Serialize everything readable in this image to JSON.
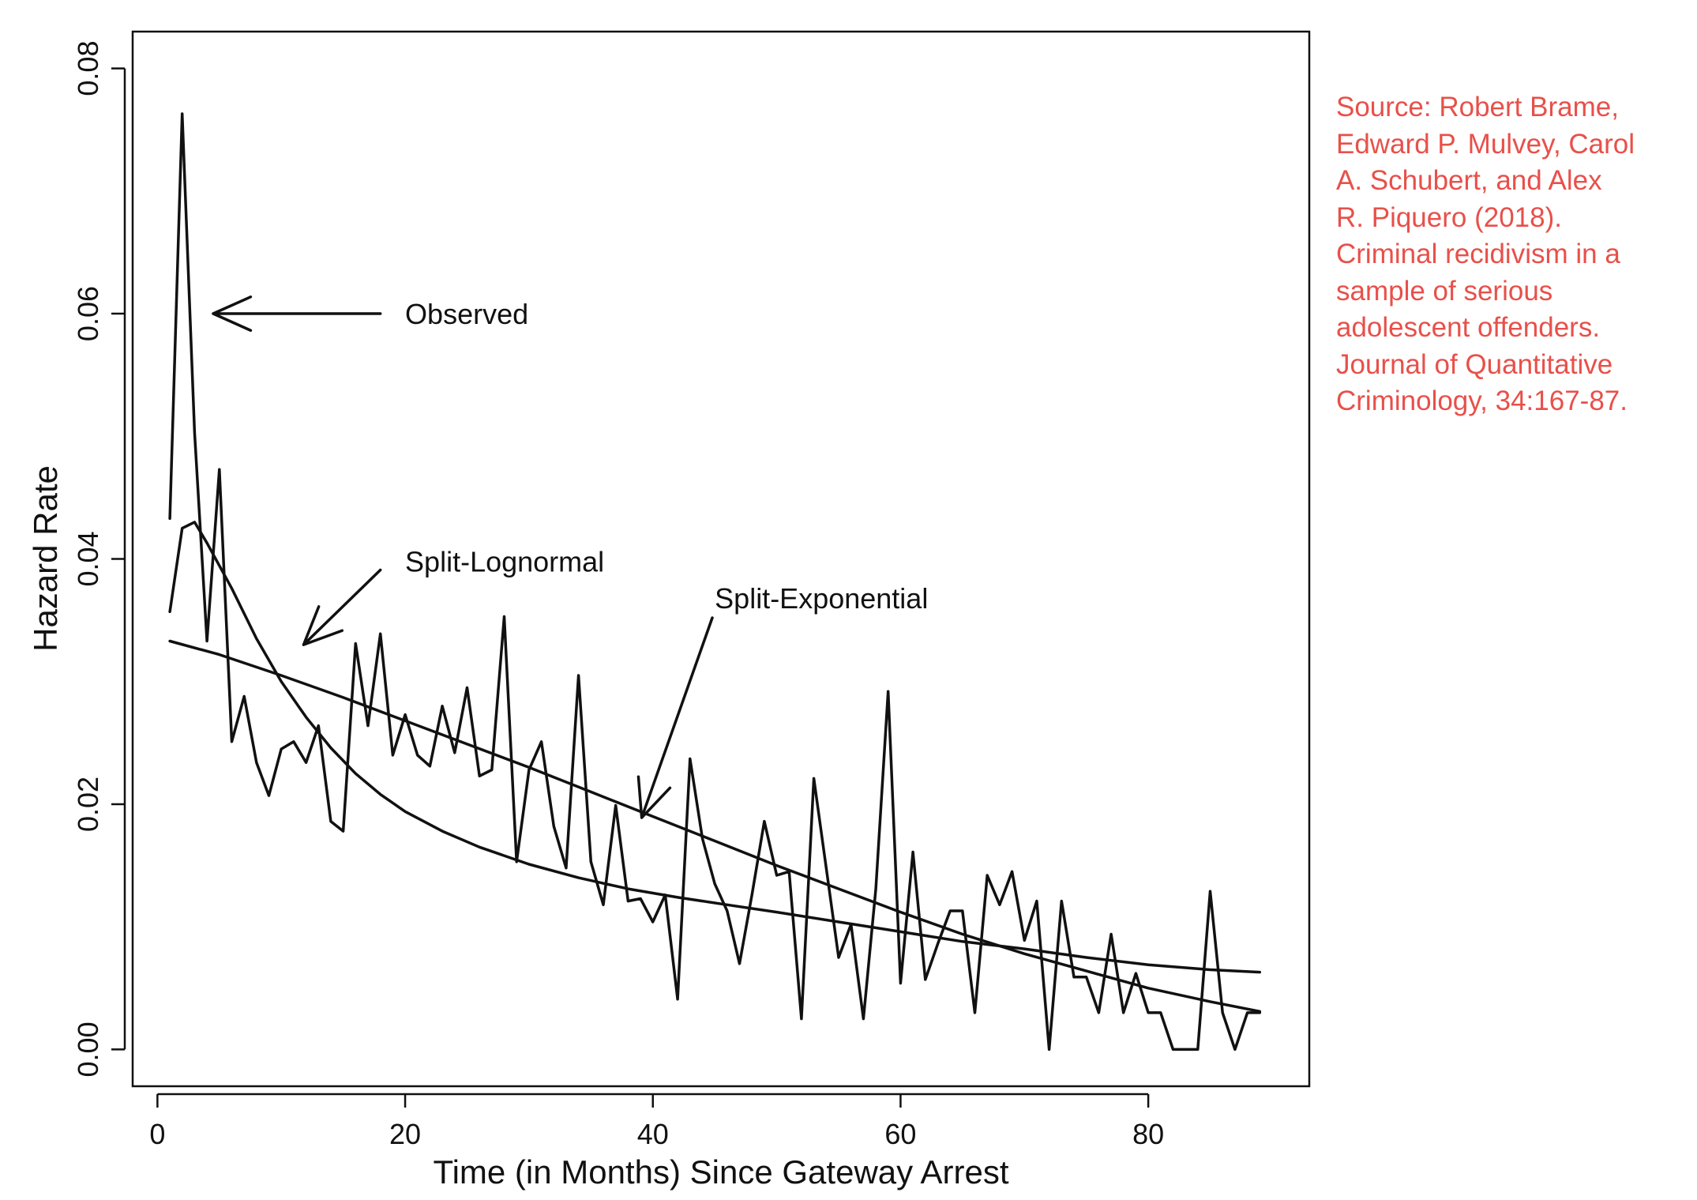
{
  "chart_data": {
    "type": "line",
    "xlabel": "Time (in Months) Since Gateway Arrest",
    "ylabel": "Hazard Rate",
    "xlim": [
      -2,
      93
    ],
    "ylim": [
      -0.003,
      0.083
    ],
    "xticks": [
      0,
      20,
      40,
      60,
      80
    ],
    "yticks": [
      0.0,
      0.02,
      0.04,
      0.06,
      0.08
    ],
    "xtick_labels": [
      "0",
      "20",
      "40",
      "60",
      "80"
    ],
    "ytick_labels": [
      "0.00",
      "0.02",
      "0.04",
      "0.06",
      "0.08"
    ],
    "grid": false,
    "legend": "none",
    "series": [
      {
        "name": "Observed",
        "x": [
          1,
          2,
          3,
          4,
          5,
          6,
          7,
          8,
          9,
          10,
          11,
          12,
          13,
          14,
          15,
          16,
          17,
          18,
          19,
          20,
          21,
          22,
          23,
          24,
          25,
          26,
          27,
          28,
          29,
          30,
          31,
          32,
          33,
          34,
          35,
          36,
          37,
          38,
          39,
          40,
          41,
          42,
          43,
          44,
          45,
          46,
          47,
          48,
          49,
          50,
          51,
          52,
          53,
          54,
          55,
          56,
          57,
          58,
          59,
          60,
          61,
          62,
          63,
          64,
          65,
          66,
          67,
          68,
          69,
          70,
          71,
          72,
          73,
          74,
          75,
          76,
          77,
          78,
          79,
          80,
          81,
          82,
          83,
          84,
          85,
          86,
          87,
          88,
          89
        ],
        "values": [
          0.0433,
          0.0763,
          0.0503,
          0.0333,
          0.0473,
          0.0251,
          0.0288,
          0.0234,
          0.0207,
          0.0245,
          0.0251,
          0.0234,
          0.0264,
          0.0186,
          0.0178,
          0.0331,
          0.0264,
          0.0339,
          0.024,
          0.0273,
          0.024,
          0.0231,
          0.028,
          0.0242,
          0.0295,
          0.0223,
          0.0228,
          0.0353,
          0.0153,
          0.0228,
          0.0251,
          0.0182,
          0.0148,
          0.0305,
          0.0153,
          0.0118,
          0.0199,
          0.0121,
          0.0123,
          0.0104,
          0.0126,
          0.0041,
          0.0237,
          0.0172,
          0.0135,
          0.0113,
          0.007,
          0.0126,
          0.0186,
          0.0142,
          0.0145,
          0.0025,
          0.0221,
          0.0148,
          0.0075,
          0.0102,
          0.0025,
          0.0131,
          0.0292,
          0.0054,
          0.0161,
          0.0057,
          0.0086,
          0.0113,
          0.0113,
          0.003,
          0.0142,
          0.0118,
          0.0145,
          0.0089,
          0.0121,
          0.0,
          0.0121,
          0.0059,
          0.0059,
          0.003,
          0.0094,
          0.003,
          0.0062,
          0.003,
          0.003,
          0.0,
          0.0,
          0.0,
          0.0129,
          0.003,
          0.0,
          0.003,
          0.003
        ]
      },
      {
        "name": "Split-Lognormal",
        "x": [
          1,
          2,
          3,
          4,
          6,
          8,
          10,
          12,
          14,
          16,
          18,
          20,
          23,
          26,
          30,
          34,
          38,
          42,
          46,
          50,
          55,
          60,
          65,
          70,
          75,
          80,
          85,
          89
        ],
        "values": [
          0.0357,
          0.0425,
          0.043,
          0.0413,
          0.0376,
          0.0335,
          0.03,
          0.0271,
          0.0246,
          0.0225,
          0.0208,
          0.0194,
          0.0178,
          0.0165,
          0.0151,
          0.014,
          0.0131,
          0.0124,
          0.0118,
          0.0112,
          0.0104,
          0.0096,
          0.0088,
          0.0082,
          0.0075,
          0.0069,
          0.0065,
          0.0063
        ]
      },
      {
        "name": "Split-Exponential",
        "x": [
          1,
          5,
          10,
          15,
          20,
          25,
          30,
          35,
          40,
          45,
          50,
          55,
          60,
          65,
          70,
          75,
          80,
          85,
          89
        ],
        "values": [
          0.0333,
          0.0322,
          0.0305,
          0.0287,
          0.0268,
          0.0249,
          0.023,
          0.021,
          0.019,
          0.017,
          0.015,
          0.0131,
          0.0112,
          0.0094,
          0.0078,
          0.0064,
          0.005,
          0.0039,
          0.0031
        ]
      }
    ],
    "annotations": [
      {
        "text": "Observed",
        "text_at": [
          20,
          0.06
        ],
        "arrow_from": [
          18,
          0.06
        ],
        "arrow_to": [
          4.5,
          0.06
        ]
      },
      {
        "text": "Split-Lognormal",
        "text_at": [
          20,
          0.0398
        ],
        "arrow_from": [
          18,
          0.0391
        ],
        "arrow_to": [
          11.8,
          0.033
        ]
      },
      {
        "text": "Split-Exponential",
        "text_at": [
          45,
          0.0368
        ],
        "arrow_from": [
          44.8,
          0.0352
        ],
        "arrow_to": [
          39.1,
          0.0189
        ]
      }
    ]
  },
  "source_note": {
    "lines": [
      "Source: Robert Brame,",
      "Edward P. Mulvey, Carol",
      "A. Schubert, and Alex",
      "R. Piquero (2018).",
      "Criminal recidivism in a",
      "sample of serious",
      "adolescent offenders.",
      "Journal of Quantitative",
      "Criminology, 34:167-87."
    ],
    "color": "#e8504a"
  }
}
